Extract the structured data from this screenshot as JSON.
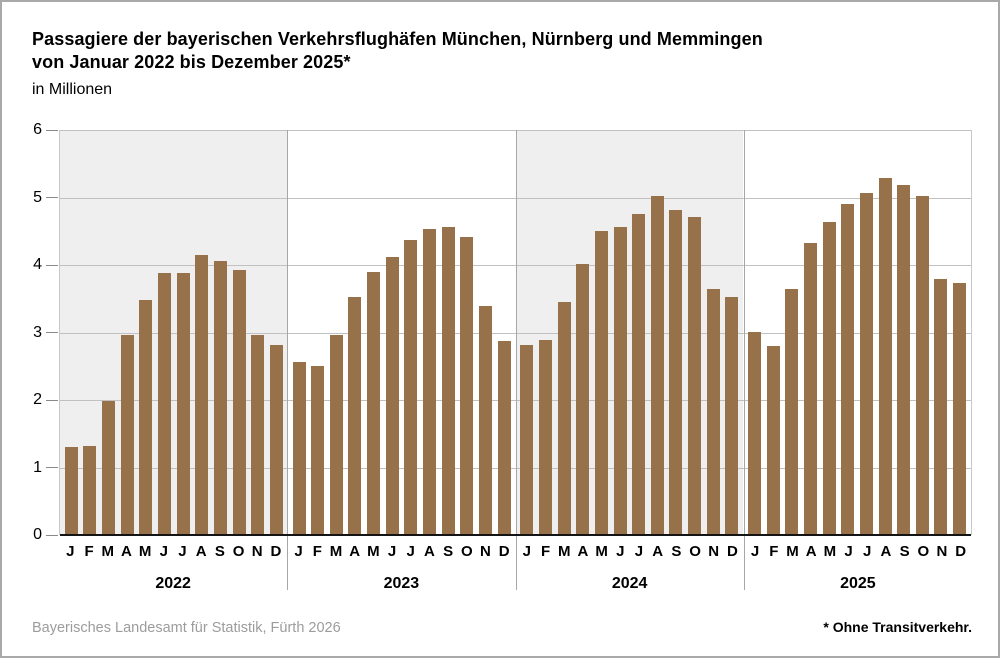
{
  "header": {
    "title_line1": "Passagiere der bayerischen Verkehrsflughäfen München, Nürnberg und Memmingen",
    "title_line2": "von Januar 2022 bis Dezember 2025*",
    "subtitle": "in Millionen"
  },
  "footer": {
    "source": "Bayerisches Landesamt für Statistik, Fürth 2026",
    "footnote": "* Ohne Transitverkehr."
  },
  "chart_data": {
    "type": "bar",
    "title": "Passagiere der bayerischen Verkehrsflughäfen München, Nürnberg und Memmingen von Januar 2022 bis Dezember 2025*",
    "ylabel": "in Millionen",
    "xlabel": "",
    "ylim": [
      0,
      6
    ],
    "yticks": [
      0,
      1,
      2,
      3,
      4,
      5,
      6
    ],
    "grid": true,
    "legend": "none",
    "month_labels": [
      "J",
      "F",
      "M",
      "A",
      "M",
      "J",
      "J",
      "A",
      "S",
      "O",
      "N",
      "D"
    ],
    "bar_color": "#96714a",
    "shaded_year_background": "#f0efef",
    "series": [
      {
        "name": "2022",
        "shaded": true,
        "values": [
          1.3,
          1.32,
          1.98,
          2.97,
          3.48,
          3.88,
          3.88,
          4.15,
          4.06,
          3.93,
          2.97,
          2.82
        ]
      },
      {
        "name": "2023",
        "shaded": false,
        "values": [
          2.57,
          2.5,
          2.97,
          3.52,
          3.89,
          4.12,
          4.37,
          4.53,
          4.56,
          4.42,
          3.4,
          2.87
        ]
      },
      {
        "name": "2024",
        "shaded": true,
        "values": [
          2.82,
          2.89,
          3.45,
          4.01,
          4.5,
          4.57,
          4.75,
          5.02,
          4.82,
          4.71,
          3.64,
          3.53
        ]
      },
      {
        "name": "2025",
        "shaded": false,
        "values": [
          3.01,
          2.8,
          3.64,
          4.32,
          4.63,
          4.9,
          5.07,
          5.29,
          5.18,
          5.02,
          3.8,
          3.74
        ]
      }
    ]
  }
}
